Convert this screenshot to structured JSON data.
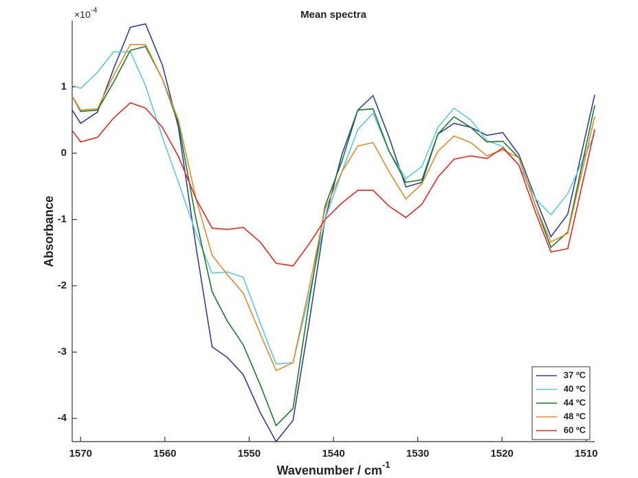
{
  "chart_data": {
    "type": "line",
    "title": "Mean spectra",
    "x_label": "Wavenumber / cm",
    "x_label_power": "-1",
    "y_label": "Absorbance",
    "y_exponent": {
      "base": "×10",
      "power": "-4"
    },
    "x": [
      1571.0,
      1570.0,
      1568.0,
      1566.1,
      1564.1,
      1562.3,
      1560.3,
      1558.4,
      1556.3,
      1554.4,
      1552.6,
      1550.7,
      1548.7,
      1546.8,
      1544.8,
      1542.9,
      1541.0,
      1539.0,
      1537.1,
      1535.3,
      1533.4,
      1531.4,
      1529.5,
      1527.6,
      1525.7,
      1523.7,
      1521.8,
      1519.9,
      1518.0,
      1516.0,
      1514.2,
      1512.2,
      1509.0
    ],
    "series": [
      {
        "name": "37 ºC",
        "color": "#2b3f9e",
        "values": [
          0.65,
          0.45,
          0.62,
          1.27,
          1.9,
          1.95,
          1.33,
          0.39,
          -1.42,
          -2.92,
          -3.08,
          -3.34,
          -3.91,
          -4.35,
          -4.03,
          -2.56,
          -1.0,
          -0.02,
          0.65,
          0.87,
          0.24,
          -0.51,
          -0.44,
          0.29,
          0.45,
          0.39,
          0.27,
          0.31,
          -0.02,
          -0.69,
          -1.26,
          -0.92,
          0.88
        ]
      },
      {
        "name": "40 ºC",
        "color": "#5bc8dc",
        "values": [
          1.02,
          0.98,
          1.22,
          1.53,
          1.53,
          1.02,
          0.24,
          -0.44,
          -1.21,
          -1.81,
          -1.79,
          -1.87,
          -2.56,
          -3.18,
          -3.16,
          -2.15,
          -1.0,
          -0.28,
          0.36,
          0.6,
          0.03,
          -0.38,
          -0.2,
          0.39,
          0.68,
          0.5,
          0.19,
          0.1,
          -0.18,
          -0.69,
          -0.93,
          -0.61,
          0.29
        ]
      },
      {
        "name": "44 ºC",
        "color": "#1a7a2a",
        "values": [
          0.86,
          0.63,
          0.65,
          1.07,
          1.55,
          1.61,
          1.12,
          0.45,
          -1.0,
          -2.09,
          -2.53,
          -2.89,
          -3.49,
          -4.11,
          -3.85,
          -2.25,
          -0.8,
          -0.12,
          0.65,
          0.67,
          0.03,
          -0.44,
          -0.4,
          0.29,
          0.55,
          0.39,
          0.17,
          0.18,
          -0.07,
          -0.8,
          -1.42,
          -1.19,
          0.72
        ]
      },
      {
        "name": "48 ºC",
        "color": "#e08a2a",
        "values": [
          0.86,
          0.65,
          0.67,
          1.17,
          1.64,
          1.64,
          1.12,
          0.5,
          -0.69,
          -1.54,
          -1.83,
          -2.11,
          -2.72,
          -3.28,
          -3.16,
          -2.04,
          -0.85,
          -0.28,
          0.11,
          0.16,
          -0.28,
          -0.69,
          -0.46,
          0.03,
          0.26,
          0.16,
          -0.04,
          0.05,
          -0.07,
          -0.8,
          -1.34,
          -1.21,
          0.55
        ]
      },
      {
        "name": "60 ºC",
        "color": "#e8261f",
        "values": [
          0.34,
          0.17,
          0.24,
          0.53,
          0.76,
          0.68,
          0.39,
          -0.05,
          -0.69,
          -1.13,
          -1.15,
          -1.12,
          -1.34,
          -1.66,
          -1.7,
          -1.37,
          -1.0,
          -0.75,
          -0.56,
          -0.56,
          -0.8,
          -0.97,
          -0.77,
          -0.36,
          -0.09,
          -0.04,
          -0.08,
          0.08,
          -0.18,
          -0.9,
          -1.49,
          -1.44,
          0.36
        ]
      }
    ],
    "xlim": [
      1571,
      1509
    ],
    "xticks": [
      1570,
      1560,
      1550,
      1540,
      1530,
      1520,
      1510
    ],
    "ylim": [
      -4.35,
      2.0
    ],
    "yticks": [
      -4,
      -3,
      -2,
      -1,
      0,
      1
    ],
    "grid": false,
    "legend": "southeast"
  }
}
